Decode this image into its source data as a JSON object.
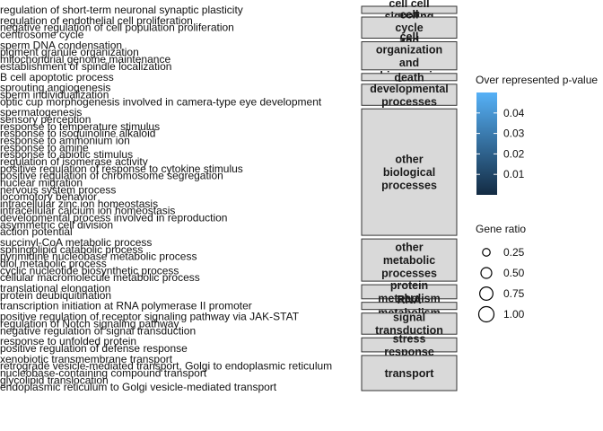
{
  "chart_data": {
    "type": "scatter",
    "title": "",
    "xlabel": "",
    "ylabel": "",
    "facets": [
      {
        "label": "cell cell signaling",
        "label_lines": [
          "cell cell",
          "signaling"
        ],
        "terms": [
          "regulation of short-term neuronal synaptic plasticity"
        ]
      },
      {
        "label": "cell cycle and",
        "label_lines": [
          "cell",
          "cycle",
          "and"
        ],
        "terms": [
          "regulation of endothelial cell proliferation",
          "negative regulation of cell population proliferation",
          "centrosome cycle"
        ]
      },
      {
        "label": "cell organization and biogenesis",
        "label_lines": [
          "cell",
          "organization",
          "and",
          "biogenesis"
        ],
        "terms": [
          "sperm DNA condensation",
          "pigment granule organization",
          "mitochondrial genome maintenance",
          "establishment of spindle localization"
        ]
      },
      {
        "label": "death",
        "label_lines": [
          "death"
        ],
        "terms": [
          "B cell apoptotic process"
        ]
      },
      {
        "label": "developmental processes",
        "label_lines": [
          "developmental",
          "processes"
        ],
        "terms": [
          "sprouting angiogenesis",
          "sperm individualization",
          "optic cup morphogenesis involved in camera-type eye development"
        ]
      },
      {
        "label": "other biological processes",
        "label_lines": [
          "other",
          "biological",
          "processes"
        ],
        "terms": [
          "spermatogenesis",
          "sensory perception",
          "response to temperature stimulus",
          "response to isoquinoline alkaloid",
          "response to ammonium ion",
          "response to amine",
          "response to abiotic stimulus",
          "regulation of isomerase activity",
          "positive regulation of response to cytokine stimulus",
          "positive regulation of chromosome segregation",
          "nuclear migration",
          "nervous system process",
          "locomotory behavior",
          "intracellular zinc ion homeostasis",
          "intracellular calcium ion homeostasis",
          "developmental process involved in reproduction",
          "asymmetric cell division",
          "action potential"
        ]
      },
      {
        "label": "other metabolic processes",
        "label_lines": [
          "other",
          "metabolic",
          "processes"
        ],
        "terms": [
          "succinyl-CoA metabolic process",
          "sphingolipid catabolic process",
          "pyrimidine nucleobase metabolic process",
          "diol metabolic process",
          "cyclic nucleotide biosynthetic process",
          "cellular macromolecule metabolic process"
        ]
      },
      {
        "label": "protein metabolism",
        "label_lines": [
          "protein",
          "metabolism"
        ],
        "terms": [
          "translational elongation",
          "protein deubiquitination"
        ]
      },
      {
        "label": "RNA metabolism",
        "label_lines": [
          "RNA",
          "metabolism"
        ],
        "terms": [
          "transcription initiation at RNA polymerase II promoter"
        ]
      },
      {
        "label": "signal transduction",
        "label_lines": [
          "signal",
          "transduction"
        ],
        "terms": [
          "positive regulation of receptor signaling pathway via JAK-STAT",
          "regulation of Notch signaling pathway",
          "negative regulation of signal transduction"
        ]
      },
      {
        "label": "stress response",
        "label_lines": [
          "stress",
          "response"
        ],
        "terms": [
          "response to unfolded protein",
          "positive regulation of defense response"
        ]
      },
      {
        "label": "transport",
        "label_lines": [
          "transport"
        ],
        "terms": [
          "xenobiotic transmembrane transport",
          "retrograde vesicle-mediated transport, Golgi to endoplasmic reticulum",
          "nucleobase-containing compound transport",
          "glycolipid translocation",
          "endoplasmic reticulum to Golgi vesicle-mediated transport"
        ]
      }
    ],
    "legend": {
      "color": {
        "title": "Over represented p-value",
        "range": [
          0,
          0.05
        ],
        "ticks": [
          0.01,
          0.02,
          0.03,
          0.04
        ],
        "colors": [
          "#132b43",
          "#56b1f7"
        ]
      },
      "size": {
        "title": "Gene ratio",
        "values": [
          0.25,
          0.5,
          0.75,
          1.0
        ],
        "labels": [
          "0.25",
          "0.50",
          "0.75",
          "1.00"
        ]
      },
      "placement": "right"
    }
  }
}
